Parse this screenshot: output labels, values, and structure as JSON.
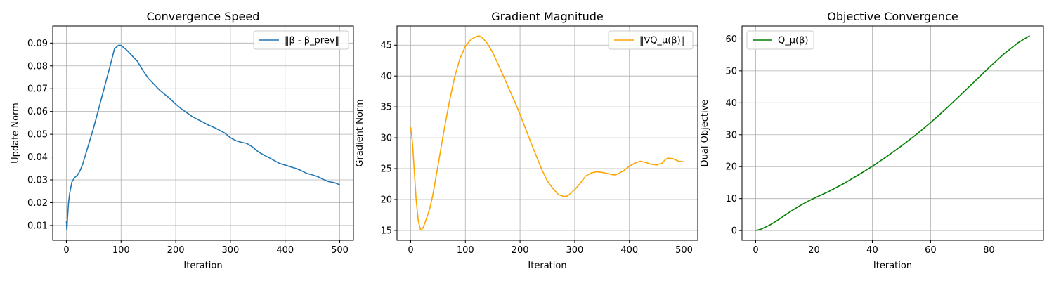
{
  "chart_data": [
    {
      "type": "line",
      "title": "Convergence Speed",
      "xlabel": "Iteration",
      "ylabel": "Update Norm",
      "xlim": [
        -25,
        525
      ],
      "ylim": [
        0.0035,
        0.0975
      ],
      "xticks": [
        0,
        100,
        200,
        300,
        400,
        500
      ],
      "yticks": [
        0.01,
        0.02,
        0.03,
        0.04,
        0.05,
        0.06,
        0.07,
        0.08,
        0.09
      ],
      "ytick_labels": [
        "0.01",
        "0.02",
        "0.03",
        "0.04",
        "0.05",
        "0.06",
        "0.07",
        "0.08",
        "0.09"
      ],
      "grid": true,
      "legend_position": "top-right",
      "series": [
        {
          "name": "‖β - β_prev‖",
          "color": "#1f77b4",
          "x": [
            0,
            1,
            2,
            4,
            6,
            10,
            15,
            20,
            25,
            30,
            40,
            50,
            60,
            70,
            80,
            88,
            95,
            100,
            110,
            120,
            130,
            140,
            150,
            160,
            170,
            180,
            190,
            200,
            210,
            220,
            230,
            240,
            250,
            260,
            270,
            280,
            290,
            300,
            310,
            320,
            330,
            340,
            350,
            360,
            370,
            380,
            390,
            400,
            410,
            420,
            430,
            440,
            450,
            460,
            470,
            480,
            490,
            500
          ],
          "y": [
            0.012,
            0.008,
            0.013,
            0.02,
            0.024,
            0.029,
            0.031,
            0.032,
            0.034,
            0.037,
            0.045,
            0.053,
            0.062,
            0.071,
            0.08,
            0.0875,
            0.089,
            0.089,
            0.087,
            0.0845,
            0.082,
            0.078,
            0.0745,
            0.072,
            0.0695,
            0.0675,
            0.0655,
            0.0632,
            0.0612,
            0.0595,
            0.0578,
            0.0565,
            0.0553,
            0.054,
            0.053,
            0.0518,
            0.0505,
            0.0485,
            0.0472,
            0.0465,
            0.046,
            0.0445,
            0.0425,
            0.041,
            0.0398,
            0.0385,
            0.0372,
            0.0365,
            0.0357,
            0.035,
            0.034,
            0.0328,
            0.0322,
            0.0314,
            0.0302,
            0.0292,
            0.0288,
            0.0278
          ]
        }
      ]
    },
    {
      "type": "line",
      "title": "Gradient Magnitude",
      "xlabel": "Iteration",
      "ylabel": "Gradient Norm",
      "xlim": [
        -25,
        525
      ],
      "ylim": [
        13.4,
        48.1
      ],
      "xticks": [
        0,
        100,
        200,
        300,
        400,
        500
      ],
      "yticks": [
        15,
        20,
        25,
        30,
        35,
        40,
        45
      ],
      "ytick_labels": [
        "15",
        "20",
        "25",
        "30",
        "35",
        "40",
        "45"
      ],
      "grid": true,
      "legend_position": "top-right",
      "series": [
        {
          "name": "‖∇Q_μ(β)‖",
          "color": "#ffa500",
          "x": [
            0,
            3,
            6,
            10,
            14,
            18,
            22,
            26,
            30,
            35,
            40,
            50,
            60,
            70,
            80,
            90,
            100,
            110,
            120,
            125,
            130,
            140,
            150,
            160,
            170,
            180,
            190,
            200,
            210,
            220,
            230,
            240,
            250,
            260,
            270,
            280,
            285,
            290,
            300,
            310,
            320,
            330,
            340,
            350,
            360,
            365,
            370,
            375,
            380,
            390,
            400,
            410,
            420,
            430,
            440,
            450,
            460,
            465,
            470,
            480,
            490,
            500
          ],
          "y": [
            31.7,
            29.5,
            25.5,
            20,
            16.5,
            15.1,
            15.3,
            16.2,
            17.2,
            18.6,
            20.5,
            25.5,
            30.7,
            35.5,
            39.7,
            42.8,
            44.8,
            45.9,
            46.4,
            46.5,
            46.3,
            45.3,
            43.8,
            41.9,
            39.9,
            37.9,
            35.9,
            33.8,
            31.5,
            29.2,
            27,
            24.8,
            23,
            21.8,
            20.8,
            20.5,
            20.5,
            20.8,
            21.6,
            22.6,
            23.8,
            24.3,
            24.5,
            24.4,
            24.2,
            24.1,
            24,
            24,
            24.2,
            24.7,
            25.4,
            25.9,
            26.2,
            26,
            25.7,
            25.6,
            25.9,
            26.4,
            26.7,
            26.6,
            26.2,
            26.1
          ]
        }
      ]
    },
    {
      "type": "line",
      "title": "Objective Convergence",
      "xlabel": "Iteration",
      "ylabel": "Dual Objective",
      "xlim": [
        -4.7,
        98.7
      ],
      "ylim": [
        -3.05,
        64.05
      ],
      "xticks": [
        0,
        20,
        40,
        60,
        80
      ],
      "yticks": [
        0,
        10,
        20,
        30,
        40,
        50,
        60
      ],
      "ytick_labels": [
        "0",
        "10",
        "20",
        "30",
        "40",
        "50",
        "60"
      ],
      "grid": true,
      "legend_position": "top-left",
      "series": [
        {
          "name": "Q_μ(β)",
          "color": "#008000",
          "x": [
            0,
            2,
            5,
            8,
            10,
            12,
            15,
            18,
            20,
            25,
            30,
            35,
            40,
            45,
            50,
            55,
            60,
            65,
            70,
            75,
            80,
            85,
            90,
            94
          ],
          "y": [
            0,
            0.5,
            1.8,
            3.5,
            4.8,
            6.0,
            7.7,
            9.2,
            10.1,
            12.2,
            14.6,
            17.3,
            20.1,
            23.2,
            26.5,
            30.0,
            33.8,
            37.9,
            42.2,
            46.6,
            51.0,
            55.2,
            58.8,
            61.0
          ]
        }
      ]
    }
  ]
}
